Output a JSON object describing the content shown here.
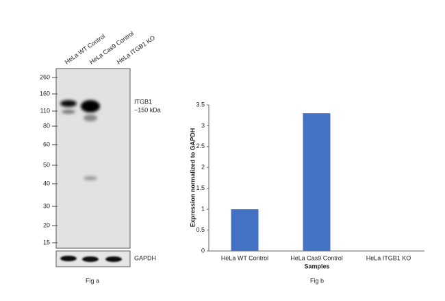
{
  "figure_a": {
    "lanes": [
      "HeLa WT Control",
      "HeLa Cas9 Control",
      "HeLa ITGB1 KO"
    ],
    "markers": [
      260,
      160,
      110,
      80,
      60,
      50,
      40,
      30,
      20,
      15
    ],
    "target": "ITGB1",
    "target_size": "~150 kDa",
    "loading_control": "GAPDH",
    "caption": "Fig a"
  },
  "chart_data": {
    "type": "bar",
    "caption": "Fig b",
    "x_label": "Samples",
    "y_label": "Expression normalized to GAPDH",
    "categories": [
      "HeLa WT Control",
      "HeLa Cas9 Control",
      "HeLa ITGB1 KO"
    ],
    "values": [
      1,
      3.3,
      0
    ],
    "color": "#4472c4",
    "ylim": [
      0,
      3.5
    ],
    "yticks": [
      0,
      0.5,
      1,
      1.5,
      2,
      2.5,
      3,
      3.5
    ],
    "grid": false
  }
}
